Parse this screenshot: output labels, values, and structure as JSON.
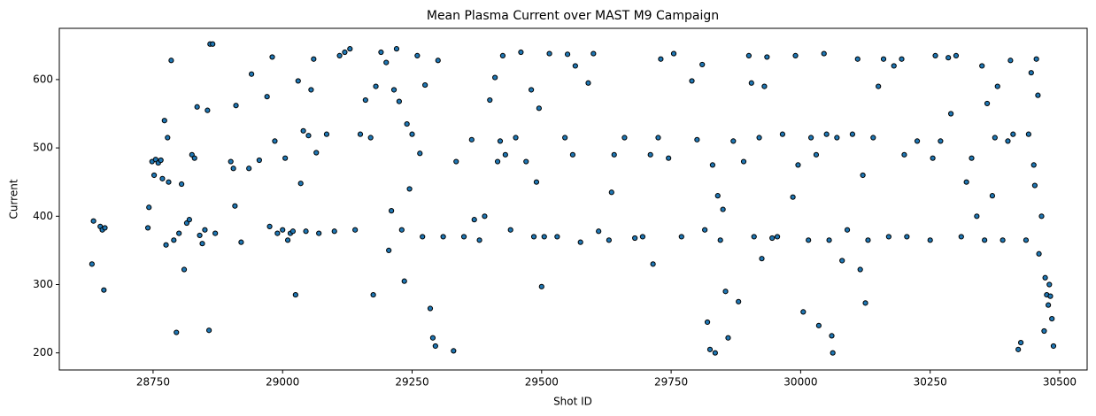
{
  "chart_data": {
    "type": "scatter",
    "title": "Mean Plasma Current over MAST M9 Campaign",
    "x_label": "Shot ID",
    "y_label": "Current",
    "color": "#1f77b4",
    "edgecolor": "#000000",
    "xlim": [
      28569,
      30553
    ],
    "ylim": [
      175,
      675
    ],
    "xticks": [
      28750,
      29000,
      29250,
      29500,
      29750,
      30000,
      30250,
      30500
    ],
    "yticks": [
      200,
      300,
      400,
      500,
      600
    ],
    "grid": false,
    "x": [
      28632,
      28635,
      28648,
      28652,
      28655,
      28657,
      28740,
      28742,
      28748,
      28752,
      28755,
      28760,
      28765,
      28768,
      28772,
      28775,
      28778,
      28780,
      28785,
      28790,
      28795,
      28800,
      28805,
      28810,
      28815,
      28820,
      28825,
      28830,
      28835,
      28840,
      28845,
      28850,
      28855,
      28858,
      28860,
      28865,
      28870,
      28900,
      28905,
      28908,
      28910,
      28920,
      28935,
      28940,
      28955,
      28970,
      28975,
      28980,
      28985,
      28990,
      29000,
      29005,
      29010,
      29015,
      29020,
      29025,
      29030,
      29035,
      29040,
      29045,
      29050,
      29055,
      29060,
      29065,
      29070,
      29085,
      29100,
      29110,
      29120,
      29130,
      29140,
      29150,
      29160,
      29170,
      29175,
      29180,
      29190,
      29200,
      29205,
      29210,
      29215,
      29220,
      29225,
      29230,
      29235,
      29240,
      29245,
      29250,
      29260,
      29265,
      29270,
      29275,
      29285,
      29290,
      29295,
      29300,
      29310,
      29330,
      29335,
      29350,
      29365,
      29370,
      29380,
      29390,
      29400,
      29410,
      29415,
      29420,
      29425,
      29430,
      29440,
      29450,
      29460,
      29470,
      29480,
      29485,
      29490,
      29495,
      29500,
      29505,
      29515,
      29530,
      29545,
      29550,
      29560,
      29565,
      29575,
      29590,
      29600,
      29610,
      29630,
      29635,
      29640,
      29660,
      29680,
      29695,
      29710,
      29715,
      29725,
      29730,
      29745,
      29755,
      29770,
      29790,
      29800,
      29810,
      29815,
      29820,
      29825,
      29830,
      29835,
      29840,
      29845,
      29850,
      29855,
      29860,
      29870,
      29880,
      29890,
      29900,
      29905,
      29910,
      29920,
      29925,
      29930,
      29935,
      29945,
      29955,
      29965,
      29985,
      29990,
      29995,
      30005,
      30015,
      30020,
      30030,
      30035,
      30045,
      30050,
      30055,
      30060,
      30062,
      30070,
      30080,
      30090,
      30100,
      30110,
      30115,
      30120,
      30125,
      30130,
      30140,
      30150,
      30160,
      30170,
      30180,
      30195,
      30200,
      30205,
      30225,
      30250,
      30255,
      30260,
      30270,
      30285,
      30290,
      30300,
      30310,
      30320,
      30330,
      30340,
      30350,
      30355,
      30360,
      30370,
      30375,
      30380,
      30390,
      30400,
      30405,
      30410,
      30420,
      30425,
      30435,
      30440,
      30445,
      30450,
      30455,
      30460,
      30465,
      30470,
      30472,
      30475,
      30478,
      30480,
      30482,
      30485,
      30488,
      30452,
      30458
    ],
    "values": [
      330,
      393,
      385,
      380,
      292,
      383,
      383,
      413,
      480,
      460,
      483,
      478,
      482,
      455,
      540,
      358,
      515,
      450,
      628,
      365,
      230,
      375,
      447,
      322,
      390,
      395,
      490,
      485,
      560,
      372,
      360,
      380,
      555,
      233,
      652,
      652,
      375,
      480,
      470,
      415,
      562,
      362,
      470,
      608,
      482,
      575,
      385,
      633,
      510,
      375,
      380,
      485,
      365,
      375,
      378,
      285,
      598,
      448,
      525,
      378,
      518,
      585,
      630,
      493,
      375,
      520,
      378,
      635,
      640,
      645,
      380,
      520,
      570,
      515,
      285,
      590,
      640,
      625,
      350,
      408,
      585,
      645,
      568,
      380,
      305,
      535,
      440,
      520,
      635,
      492,
      370,
      592,
      265,
      222,
      210,
      628,
      370,
      203,
      480,
      370,
      512,
      395,
      365,
      400,
      570,
      603,
      480,
      510,
      635,
      490,
      380,
      515,
      640,
      480,
      585,
      370,
      450,
      558,
      297,
      370,
      638,
      370,
      515,
      637,
      490,
      620,
      362,
      595,
      638,
      378,
      365,
      435,
      490,
      515,
      368,
      370,
      490,
      330,
      515,
      630,
      485,
      638,
      370,
      598,
      512,
      622,
      380,
      245,
      205,
      475,
      200,
      430,
      365,
      410,
      290,
      222,
      510,
      275,
      480,
      635,
      595,
      370,
      515,
      338,
      590,
      633,
      368,
      370,
      520,
      428,
      635,
      475,
      260,
      365,
      515,
      490,
      240,
      638,
      520,
      365,
      225,
      200,
      515,
      335,
      380,
      520,
      630,
      322,
      460,
      273,
      365,
      515,
      590,
      630,
      370,
      620,
      630,
      490,
      370,
      510,
      365,
      485,
      635,
      510,
      632,
      550,
      635,
      370,
      450,
      485,
      400,
      620,
      365,
      565,
      430,
      515,
      590,
      365,
      510,
      628,
      520,
      205,
      215,
      365,
      520,
      610,
      475,
      630,
      345,
      400,
      232,
      310,
      285,
      270,
      300,
      283,
      250,
      210,
      445,
      577
    ]
  }
}
